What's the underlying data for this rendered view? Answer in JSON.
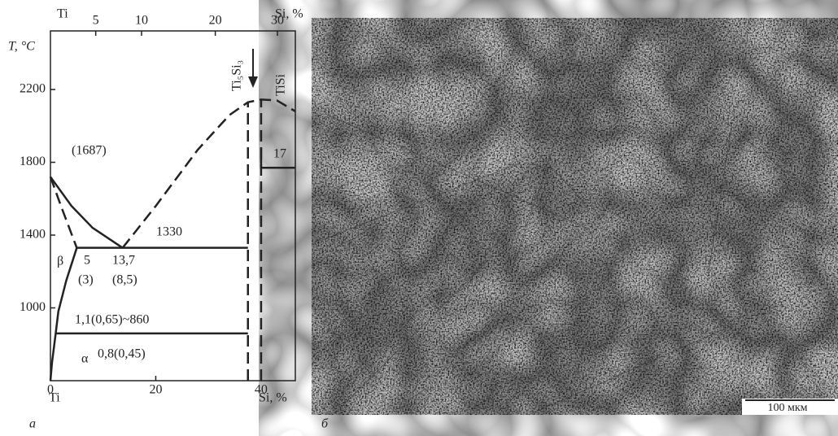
{
  "diagram": {
    "panel_label": "а",
    "top_axis_left": "Ti",
    "top_axis_right": "Si, %",
    "y_label": "T, °C",
    "bottom_axis_left": "Ti",
    "bottom_axis_right": "Si, %",
    "xlim": [
      0,
      46.5
    ],
    "ylim": [
      600,
      2522
    ],
    "xticks": [
      0,
      20,
      40
    ],
    "top_ticks": [
      {
        "value": 8.6,
        "label": "5"
      },
      {
        "value": 17.3,
        "label": "10"
      },
      {
        "value": 31.3,
        "label": "20"
      },
      {
        "value": 43.1,
        "label": "30"
      }
    ],
    "yticks": [
      1000,
      1400,
      1800,
      2200
    ],
    "curves": [
      {
        "points": [
          [
            0,
            1720
          ],
          [
            4,
            1560
          ],
          [
            8,
            1440
          ],
          [
            13.7,
            1330
          ]
        ],
        "dash": false
      },
      {
        "points": [
          [
            13.7,
            1330
          ],
          [
            20,
            1560
          ],
          [
            28,
            1870
          ],
          [
            34,
            2060
          ],
          [
            37.5,
            2130
          ],
          [
            40,
            2145
          ],
          [
            43,
            2140
          ],
          [
            46.5,
            2080
          ]
        ],
        "dash": true
      },
      {
        "points": [
          [
            0,
            1720
          ],
          [
            2,
            1560
          ],
          [
            5,
            1330
          ]
        ],
        "dash": true
      },
      {
        "points": [
          [
            5,
            1330
          ],
          [
            3,
            1150
          ],
          [
            1.5,
            980
          ],
          [
            1,
            860
          ],
          [
            0.3,
            700
          ],
          [
            0,
            600
          ]
        ],
        "dash": false
      },
      {
        "points": [
          [
            5,
            1330
          ],
          [
            37.5,
            1330
          ]
        ],
        "dash": false
      },
      {
        "points": [
          [
            1,
            860
          ],
          [
            37.5,
            860
          ]
        ],
        "dash": false
      },
      {
        "points": [
          [
            37.5,
            600
          ],
          [
            37.5,
            2130
          ]
        ],
        "dash": true
      },
      {
        "points": [
          [
            40,
            600
          ],
          [
            40,
            2145
          ]
        ],
        "dash": true
      },
      {
        "points": [
          [
            40,
            1880
          ],
          [
            40,
            1770
          ],
          [
            46.5,
            1770
          ]
        ],
        "dash": false
      }
    ],
    "annotations": [
      "(1687)",
      "1330",
      "β",
      "5",
      "(3)",
      "13,7",
      "(8,5)",
      "1,1(0,65)~860",
      "0,8(0,45)",
      "α",
      "17",
      "Ti₅Si₃",
      "TiSi"
    ]
  },
  "micrograph": {
    "panel_label": "б",
    "scale_bar": "100 мкм"
  }
}
